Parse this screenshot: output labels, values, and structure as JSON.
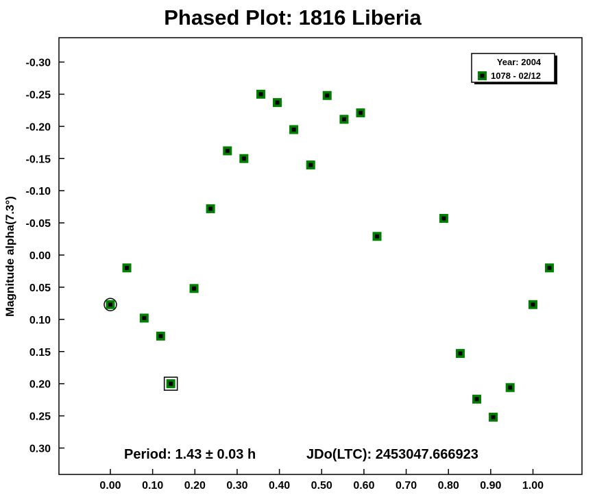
{
  "chart_data": {
    "type": "scatter",
    "title": "Phased Plot: 1816 Liberia",
    "ylabel": "Magnitude alpha(7.3°)",
    "xlabel": "",
    "xlim": [
      -0.12,
      1.12
    ],
    "ylim": [
      0.34,
      -0.34
    ],
    "y_inverted": true,
    "x_ticks": [
      "0.00",
      "0.10",
      "0.20",
      "0.30",
      "0.40",
      "0.50",
      "0.60",
      "0.70",
      "0.80",
      "0.90",
      "1.00"
    ],
    "x_tick_values": [
      0,
      0.1,
      0.2,
      0.3,
      0.4,
      0.5,
      0.6,
      0.7,
      0.8,
      0.9,
      1.0
    ],
    "y_ticks": [
      "-0.30",
      "-0.25",
      "-0.20",
      "-0.15",
      "-0.10",
      "-0.05",
      "0.00",
      "0.05",
      "0.10",
      "0.15",
      "0.20",
      "0.25",
      "0.30"
    ],
    "y_tick_values": [
      -0.3,
      -0.25,
      -0.2,
      -0.15,
      -0.1,
      -0.05,
      0.0,
      0.05,
      0.1,
      0.15,
      0.2,
      0.25,
      0.3
    ],
    "grid": false,
    "legend": {
      "placement": "top-right",
      "title": "Year: 2004",
      "entries": [
        "1078 - 02/12"
      ]
    },
    "annotations": {
      "period": "Period: 1.43 ± 0.03 h",
      "jd": "JDo(LTC): 2453047.666923"
    },
    "colors": {
      "marker_fill": "#008000",
      "marker_center": "#000000"
    },
    "series": [
      {
        "name": "1078 - 02/12",
        "points": [
          {
            "x": 0.0,
            "y": 0.077,
            "marker": "circled"
          },
          {
            "x": 0.039,
            "y": 0.02
          },
          {
            "x": 0.08,
            "y": 0.098
          },
          {
            "x": 0.119,
            "y": 0.126
          },
          {
            "x": 0.143,
            "y": 0.2,
            "marker": "boxed"
          },
          {
            "x": 0.198,
            "y": 0.052
          },
          {
            "x": 0.237,
            "y": -0.072
          },
          {
            "x": 0.277,
            "y": -0.162
          },
          {
            "x": 0.316,
            "y": -0.15
          },
          {
            "x": 0.356,
            "y": -0.25
          },
          {
            "x": 0.395,
            "y": -0.237
          },
          {
            "x": 0.434,
            "y": -0.195
          },
          {
            "x": 0.474,
            "y": -0.14
          },
          {
            "x": 0.513,
            "y": -0.248
          },
          {
            "x": 0.553,
            "y": -0.211
          },
          {
            "x": 0.592,
            "y": -0.221
          },
          {
            "x": 0.631,
            "y": -0.029
          },
          {
            "x": 0.789,
            "y": -0.057
          },
          {
            "x": 0.828,
            "y": 0.153
          },
          {
            "x": 0.867,
            "y": 0.224
          },
          {
            "x": 0.906,
            "y": 0.252
          },
          {
            "x": 0.946,
            "y": 0.206
          },
          {
            "x": 1.0,
            "y": 0.077
          },
          {
            "x": 1.039,
            "y": 0.02
          }
        ]
      }
    ]
  }
}
